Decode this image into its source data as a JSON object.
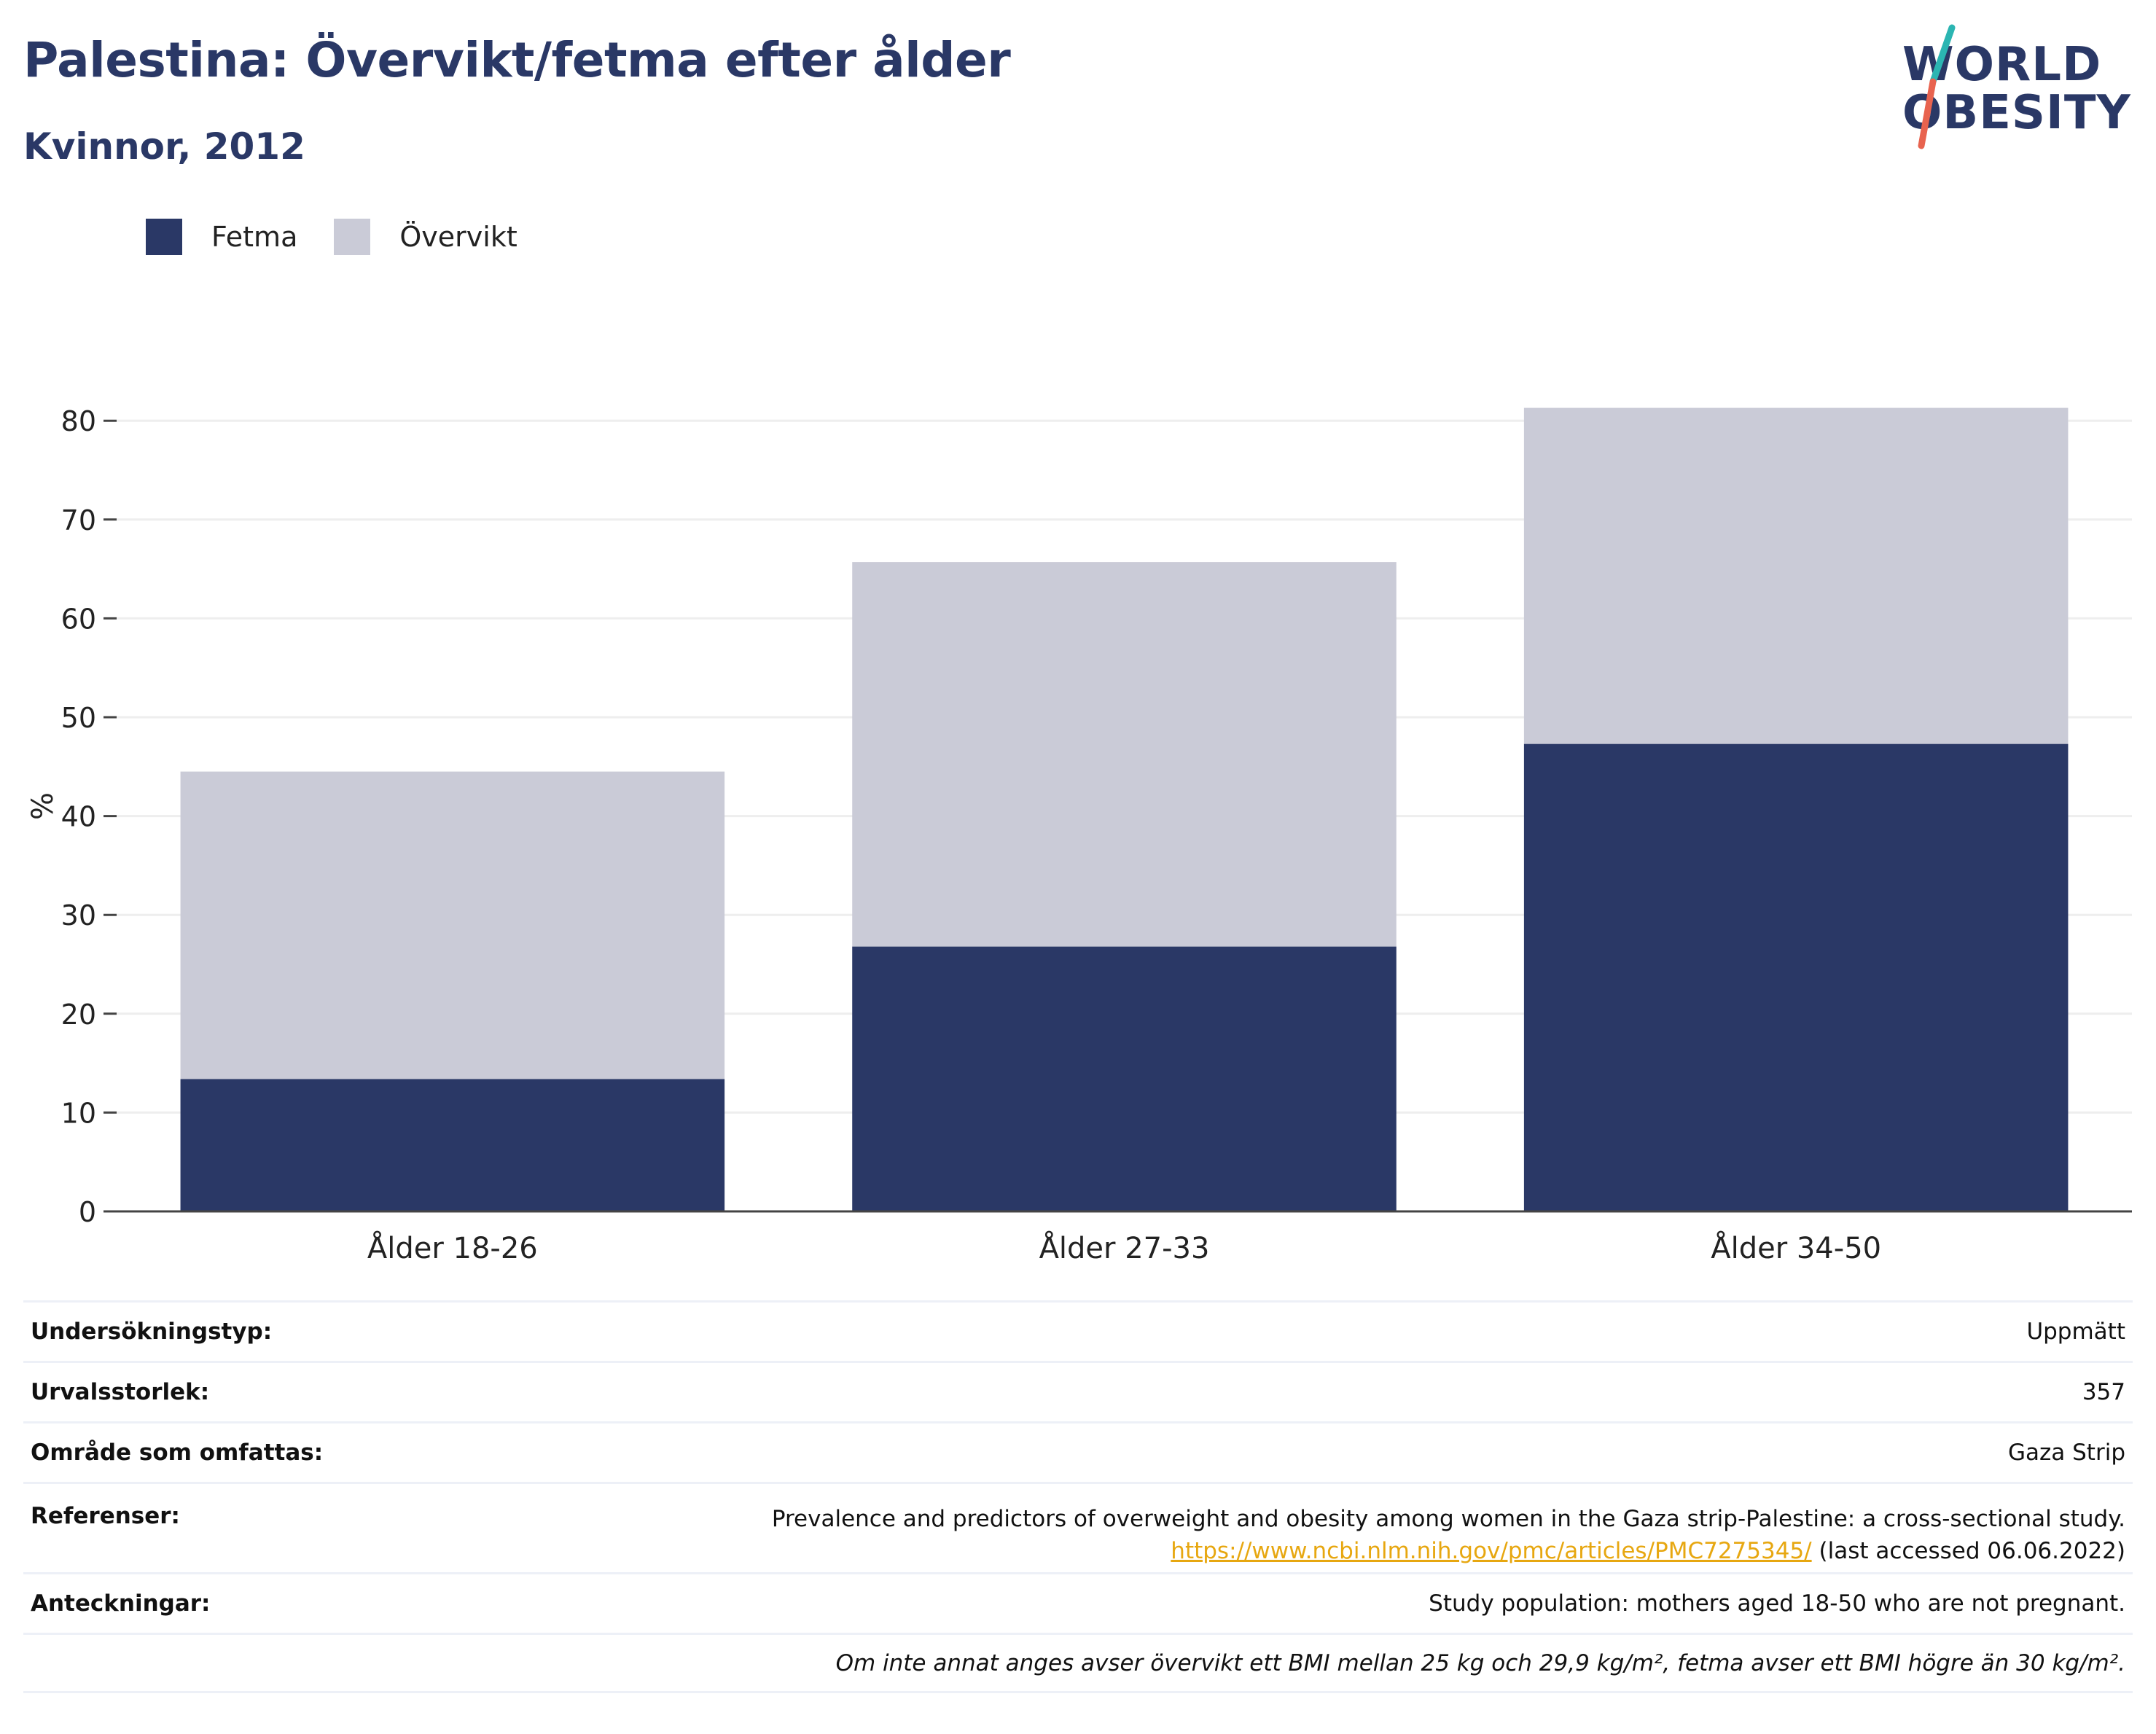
{
  "title": "Palestina: Övervikt/fetma efter ålder",
  "subtitle": "Kvinnor, 2012",
  "logo": {
    "line1": "WORLD",
    "line2": "OBESITY"
  },
  "colors": {
    "fetma": "#2a3866",
    "overvikt": "#cacbd7",
    "title": "#2a3866",
    "link": "#e7a710",
    "grid": "#eeeeee"
  },
  "legend": [
    {
      "label": "Fetma",
      "color": "#2a3866"
    },
    {
      "label": "Övervikt",
      "color": "#cacbd7"
    }
  ],
  "chart_data": {
    "type": "bar",
    "stacked": true,
    "categories": [
      "Ålder 18-26",
      "Ålder 27-33",
      "Ålder 34-50"
    ],
    "series": [
      {
        "name": "Fetma",
        "values": [
          13.4,
          26.8,
          47.3
        ]
      },
      {
        "name": "Övervikt",
        "values": [
          31.1,
          38.9,
          34.0
        ]
      }
    ],
    "ylabel": "%",
    "ylim": [
      0,
      82
    ],
    "yticks": [
      0,
      10,
      20,
      30,
      40,
      50,
      60,
      70,
      80
    ],
    "grid": true,
    "legend_position": "top-left"
  },
  "meta": {
    "survey_type_label": "Undersökningstyp:",
    "survey_type_value": "Uppmätt",
    "sample_size_label": "Urvalsstorlek:",
    "sample_size_value": "357",
    "area_label": "Område som omfattas:",
    "area_value": "Gaza Strip",
    "references_label": "Referenser:",
    "references_text": "Prevalence and predictors of overweight and obesity among women in the Gaza strip-Palestine: a cross-sectional study.",
    "references_link": "https://www.ncbi.nlm.nih.gov/pmc/articles/PMC7275345/",
    "references_accessed": "(last accessed 06.06.2022)",
    "notes_label": "Anteckningar:",
    "notes_value": "Study population: mothers aged 18-50 who are not pregnant.",
    "definition": "Om inte annat anges avser övervikt ett BMI mellan 25 kg och 29,9 kg/m², fetma avser ett BMI högre än 30 kg/m²."
  }
}
